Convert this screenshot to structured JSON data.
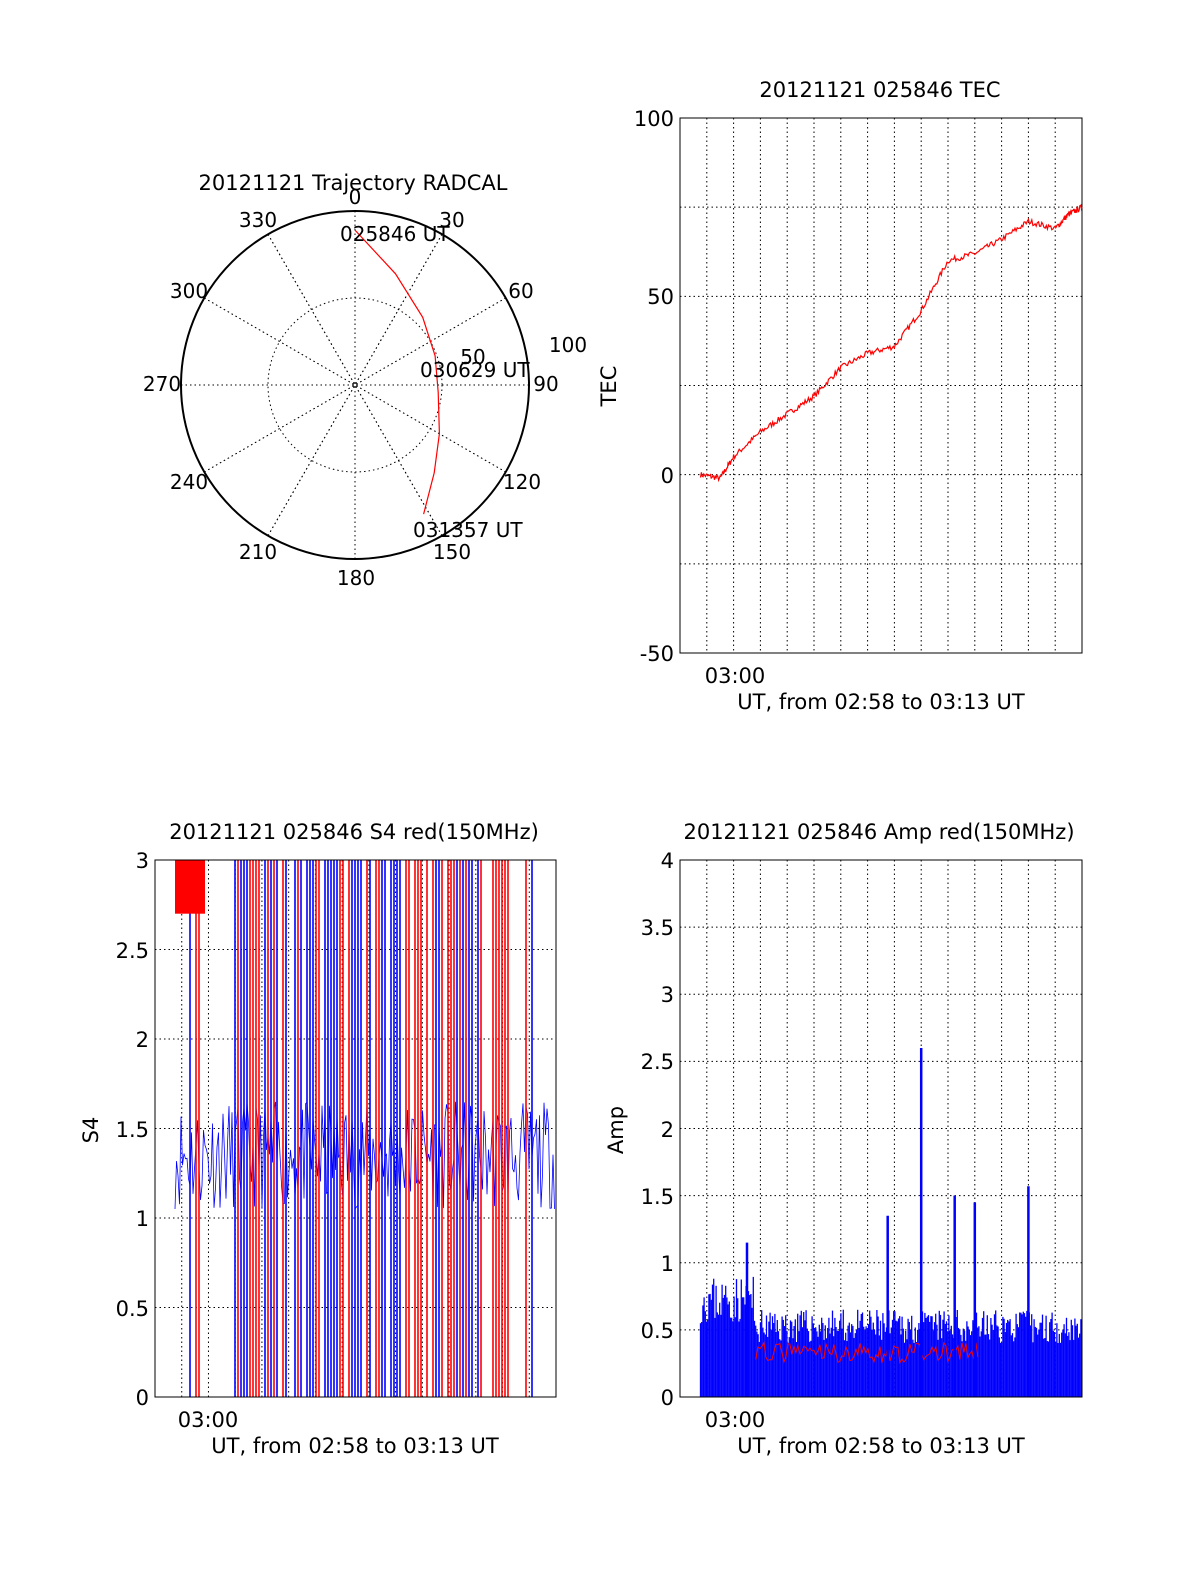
{
  "chart_data": [
    {
      "type": "polar",
      "title": "20121121 Trajectory RADCAL",
      "angle_labels": [
        "0",
        "30",
        "60",
        "90",
        "120",
        "150",
        "180",
        "210",
        "240",
        "270",
        "300",
        "330"
      ],
      "radius_labels": [
        "50",
        "100"
      ],
      "grid": true,
      "trajectory": {
        "color": "#ff0000",
        "points": [
          {
            "azimuth": 0,
            "radius": 89,
            "label": "025846 UT"
          },
          {
            "azimuth": 20,
            "radius": 68
          },
          {
            "azimuth": 45,
            "radius": 55
          },
          {
            "azimuth": 70,
            "radius": 49
          },
          {
            "azimuth": 95,
            "radius": 48,
            "label": "030629 UT"
          },
          {
            "azimuth": 120,
            "radius": 56
          },
          {
            "azimuth": 138,
            "radius": 68
          },
          {
            "azimuth": 152,
            "radius": 84,
            "label": "031357 UT"
          }
        ]
      }
    },
    {
      "type": "line",
      "title": "20121121 025846 TEC",
      "xlabel": "UT, from 02:58 to 03:13 UT",
      "ylabel": "TEC",
      "xlim": [
        "02:58",
        "03:13"
      ],
      "ylim": [
        -50,
        100
      ],
      "yticks": [
        "100",
        "50",
        "0",
        "-50"
      ],
      "xtick_labels": [
        "03:00"
      ],
      "grid": true,
      "series": [
        {
          "color": "#ff0000",
          "x": [
            "02:58:46",
            "02:59:30",
            "03:00:00",
            "03:01:00",
            "03:02:00",
            "03:03:00",
            "03:04:00",
            "03:05:00",
            "03:06:00",
            "03:07:00",
            "03:08:00",
            "03:09:00",
            "03:10:00",
            "03:11:00",
            "03:12:00",
            "03:12:30",
            "03:13:00"
          ],
          "values": [
            0,
            -1,
            5,
            12,
            17,
            22,
            30,
            34,
            36,
            46,
            60,
            62,
            66,
            71,
            69,
            73,
            75
          ]
        }
      ]
    },
    {
      "type": "line",
      "title": "20121121 025846 S4 red(150MHz)",
      "xlabel": "UT, from 02:58 to 03:13 UT",
      "ylabel": "S4",
      "xlim": [
        "02:58",
        "03:13"
      ],
      "ylim": [
        0,
        3
      ],
      "yticks": [
        "3",
        "2.5",
        "2",
        "1.5",
        "1",
        "0.5",
        "0"
      ],
      "xtick_labels": [
        "03:00"
      ],
      "grid": true,
      "series": [
        {
          "color": "#0000ff",
          "description_values": "blue channel, baseline about 1.3-1.6 with frequent saturation to 3 and drops to 0"
        },
        {
          "color": "#ff0000",
          "description_values": "red channel, mostly saturated at 3 near start and in dense spikes"
        }
      ]
    },
    {
      "type": "line",
      "title": "20121121 025846 Amp red(150MHz)",
      "xlabel": "UT, from 02:58 to 03:13 UT",
      "ylabel": "Amp",
      "xlim": [
        "02:58",
        "03:13"
      ],
      "ylim": [
        0,
        4
      ],
      "yticks": [
        "4",
        "3.5",
        "3",
        "2.5",
        "2",
        "1.5",
        "1",
        "0.5",
        "0"
      ],
      "xtick_labels": [
        "03:00"
      ],
      "grid": true,
      "series": [
        {
          "color": "#0000ff",
          "peaks": [
            {
              "x": "03:00:30",
              "value": 1.15
            },
            {
              "x": "03:05:45",
              "value": 1.35
            },
            {
              "x": "03:07:00",
              "value": 2.6
            },
            {
              "x": "03:08:15",
              "value": 1.5
            },
            {
              "x": "03:09:00",
              "value": 1.45
            },
            {
              "x": "03:11:00",
              "value": 1.57
            }
          ],
          "baseline": 0.5
        },
        {
          "color": "#ff0000",
          "baseline": 0.3
        }
      ]
    }
  ]
}
